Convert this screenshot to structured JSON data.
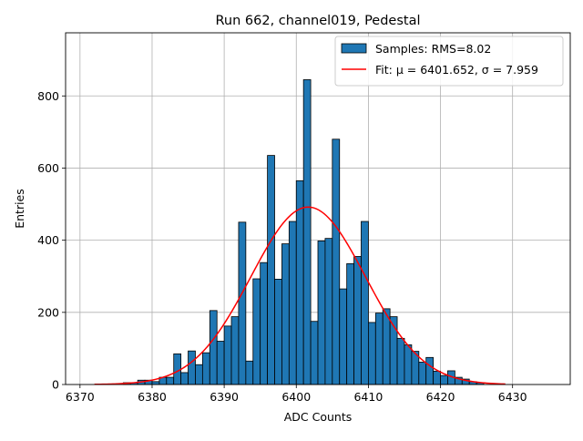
{
  "chart_data": {
    "type": "bar",
    "title": "Run 662, channel019, Pedestal",
    "xlabel": "ADC Counts",
    "ylabel": "Entries",
    "xlim": [
      6368.0,
      6438.0
    ],
    "ylim": [
      0,
      975
    ],
    "xticks": [
      6370,
      6380,
      6390,
      6400,
      6410,
      6420,
      6430
    ],
    "yticks": [
      0,
      200,
      400,
      600,
      800
    ],
    "grid": true,
    "legend_position": "top-right",
    "bin_width": 1,
    "histogram": {
      "name": "Samples: RMS=8.02",
      "color": "#1f77b4",
      "edgecolor": "#000000",
      "bins": [
        [
          6376,
          5
        ],
        [
          6377,
          5
        ],
        [
          6378,
          12
        ],
        [
          6379,
          12
        ],
        [
          6380,
          8
        ],
        [
          6381,
          20
        ],
        [
          6382,
          20
        ],
        [
          6383,
          85
        ],
        [
          6384,
          33
        ],
        [
          6385,
          93
        ],
        [
          6386,
          55
        ],
        [
          6387,
          88
        ],
        [
          6388,
          205
        ],
        [
          6389,
          120
        ],
        [
          6390,
          162
        ],
        [
          6391,
          188
        ],
        [
          6392,
          450
        ],
        [
          6393,
          65
        ],
        [
          6394,
          293
        ],
        [
          6395,
          338
        ],
        [
          6396,
          635
        ],
        [
          6397,
          292
        ],
        [
          6398,
          390
        ],
        [
          6399,
          452
        ],
        [
          6400,
          565
        ],
        [
          6401,
          845
        ],
        [
          6402,
          175
        ],
        [
          6403,
          398
        ],
        [
          6404,
          405
        ],
        [
          6405,
          680
        ],
        [
          6406,
          265
        ],
        [
          6407,
          335
        ],
        [
          6408,
          355
        ],
        [
          6409,
          452
        ],
        [
          6410,
          172
        ],
        [
          6411,
          198
        ],
        [
          6412,
          210
        ],
        [
          6413,
          188
        ],
        [
          6414,
          128
        ],
        [
          6415,
          110
        ],
        [
          6416,
          92
        ],
        [
          6417,
          62
        ],
        [
          6418,
          75
        ],
        [
          6419,
          37
        ],
        [
          6420,
          25
        ],
        [
          6421,
          38
        ],
        [
          6422,
          20
        ],
        [
          6423,
          15
        ],
        [
          6424,
          8
        ],
        [
          6425,
          5
        ]
      ]
    },
    "fit": {
      "name": "Fit: μ = 6401.652, σ = 7.959",
      "color": "#ff0000",
      "type": "gaussian",
      "mu": 6401.652,
      "sigma": 7.959,
      "amplitude": 492,
      "x_range": [
        6372,
        6429
      ]
    }
  }
}
